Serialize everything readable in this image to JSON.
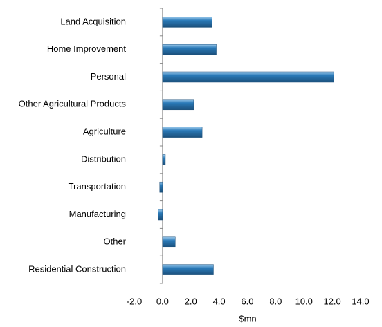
{
  "chart_data": {
    "type": "hbar",
    "categories": [
      "Land Acquisition",
      "Home Improvement",
      "Personal",
      "Other Agricultural Products",
      "Agriculture",
      "Distribution",
      "Transportation",
      "Manufacturing",
      "Other",
      "Residential Construction"
    ],
    "values": [
      3.5,
      3.8,
      12.1,
      2.2,
      2.8,
      0.2,
      -0.2,
      -0.3,
      0.9,
      3.6
    ],
    "color": "#2a7ab8",
    "xlabel": "$mn",
    "xlim": [
      -2,
      14
    ],
    "xticks": [
      {
        "value": -2,
        "label": "-2.0"
      },
      {
        "value": 0,
        "label": "0.0"
      },
      {
        "value": 2,
        "label": "2.0"
      },
      {
        "value": 4,
        "label": "4.0"
      },
      {
        "value": 6,
        "label": "6.0"
      },
      {
        "value": 8,
        "label": "8.0"
      },
      {
        "value": 10,
        "label": "10.0"
      },
      {
        "value": 12,
        "label": "12.0"
      },
      {
        "value": 14,
        "label": "14.0"
      }
    ],
    "grid": false
  }
}
